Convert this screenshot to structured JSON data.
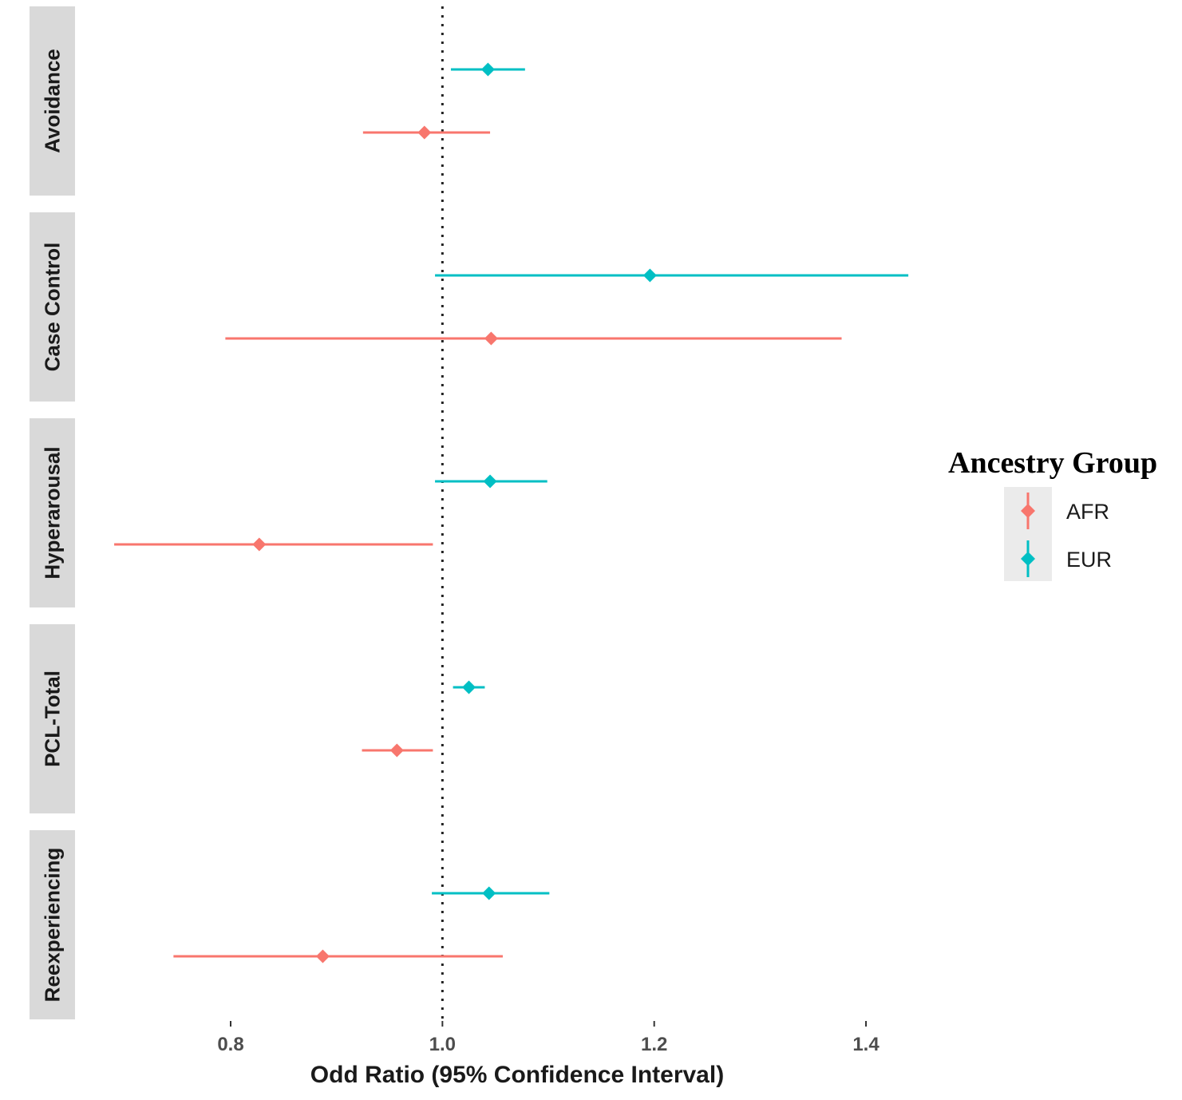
{
  "chart_data": {
    "type": "forest",
    "title": "",
    "xlabel": "Odd Ratio (95% Confidence Interval)",
    "ylabel": "",
    "xlim": [
      0.65,
      1.455
    ],
    "xticks": [
      0.8,
      1.0,
      1.2,
      1.4
    ],
    "xtick_labels": [
      "0.8",
      "1.0",
      "1.2",
      "1.4"
    ],
    "reference_line": 1.0,
    "legend": {
      "title": "Ancestry Group",
      "position": "right",
      "entries": [
        {
          "name": "AFR",
          "color": "#F8766D"
        },
        {
          "name": "EUR",
          "color": "#00BFC4"
        }
      ]
    },
    "panels": [
      {
        "label": "Avoidance",
        "points": [
          {
            "group": "EUR",
            "or": 1.043,
            "lower": 1.008,
            "upper": 1.078
          },
          {
            "group": "AFR",
            "or": 0.983,
            "lower": 0.925,
            "upper": 1.045
          }
        ]
      },
      {
        "label": "Case Control",
        "points": [
          {
            "group": "EUR",
            "or": 1.196,
            "lower": 0.993,
            "upper": 1.44
          },
          {
            "group": "AFR",
            "or": 1.046,
            "lower": 0.795,
            "upper": 1.377
          }
        ]
      },
      {
        "label": "Hyperarousal",
        "points": [
          {
            "group": "EUR",
            "or": 1.045,
            "lower": 0.993,
            "upper": 1.099
          },
          {
            "group": "AFR",
            "or": 0.827,
            "lower": 0.69,
            "upper": 0.991
          }
        ]
      },
      {
        "label": "PCL-Total",
        "points": [
          {
            "group": "EUR",
            "or": 1.025,
            "lower": 1.01,
            "upper": 1.04
          },
          {
            "group": "AFR",
            "or": 0.957,
            "lower": 0.924,
            "upper": 0.991
          }
        ]
      },
      {
        "label": "Reexperiencing",
        "points": [
          {
            "group": "EUR",
            "or": 1.044,
            "lower": 0.99,
            "upper": 1.101
          },
          {
            "group": "AFR",
            "or": 0.887,
            "lower": 0.746,
            "upper": 1.057
          }
        ]
      }
    ]
  }
}
